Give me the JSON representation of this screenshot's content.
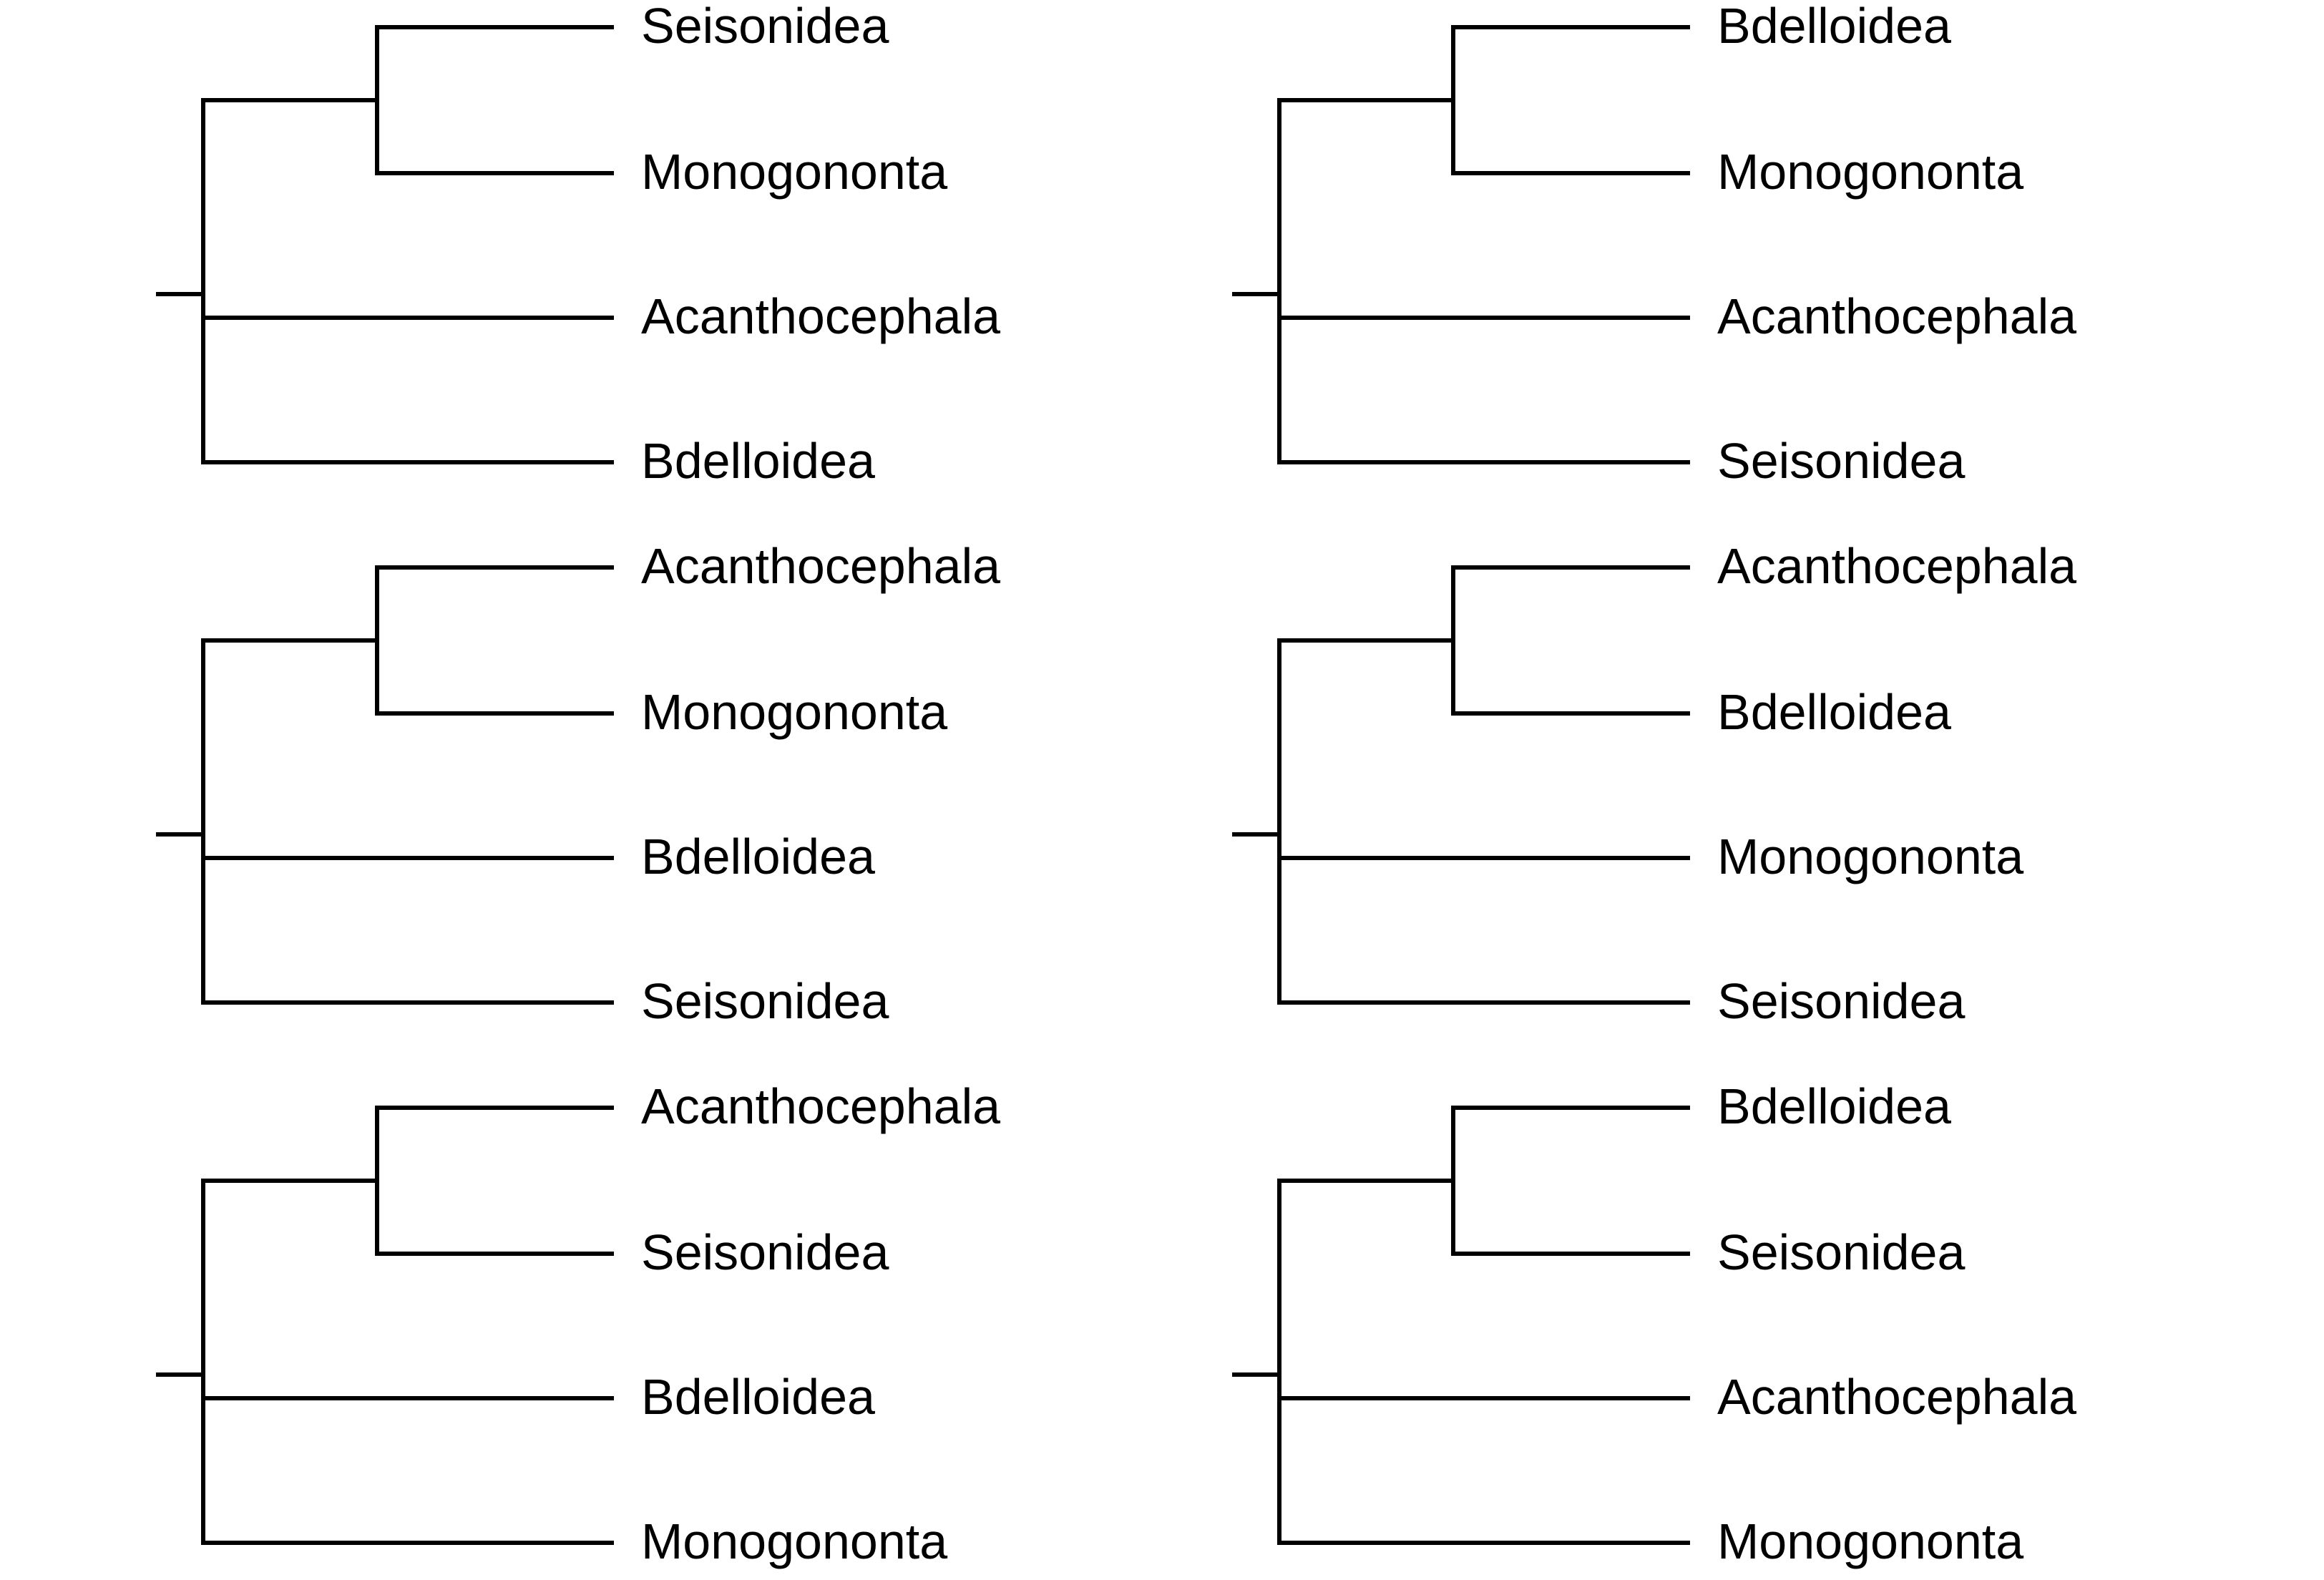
{
  "trees": [
    {
      "clade": [
        "Seisonidea",
        "Monogononta"
      ],
      "others": [
        "Acanthocephala",
        "Bdelloidea"
      ]
    },
    {
      "clade": [
        "Bdelloidea",
        "Monogononta"
      ],
      "others": [
        "Acanthocephala",
        "Seisonidea"
      ]
    },
    {
      "clade": [
        "Acanthocephala",
        "Monogononta"
      ],
      "others": [
        "Bdelloidea",
        "Seisonidea"
      ]
    },
    {
      "clade": [
        "Acanthocephala",
        "Bdelloidea"
      ],
      "others": [
        "Monogononta",
        "Seisonidea"
      ]
    },
    {
      "clade": [
        "Acanthocephala",
        "Seisonidea"
      ],
      "others": [
        "Bdelloidea",
        "Monogononta"
      ]
    },
    {
      "clade": [
        "Bdelloidea",
        "Seisonidea"
      ],
      "others": [
        "Acanthocephala",
        "Monogononta"
      ]
    }
  ]
}
